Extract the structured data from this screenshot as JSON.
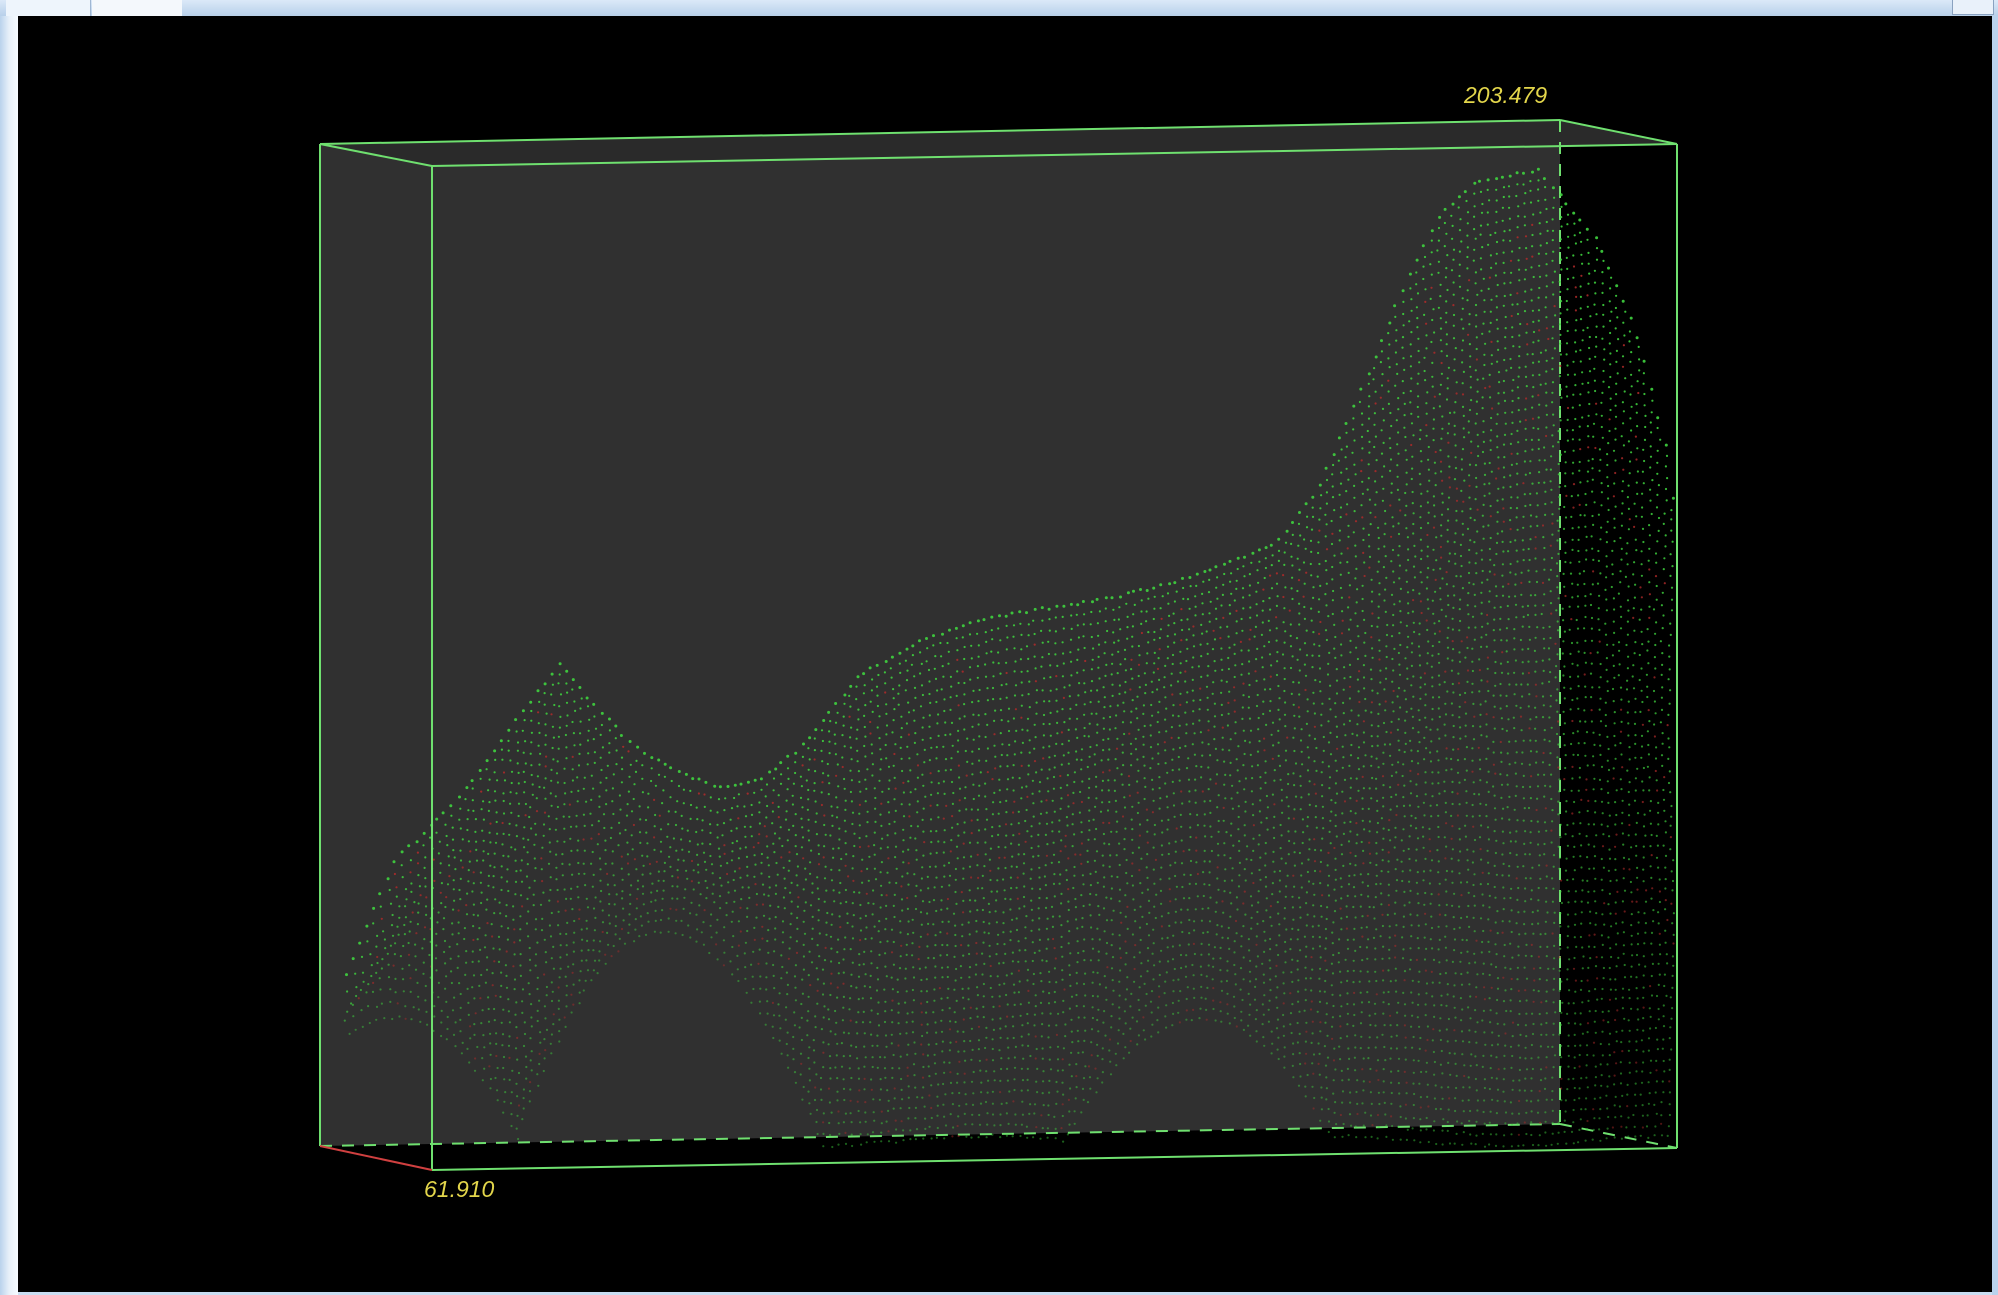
{
  "viewer": {
    "bounds": {
      "max_label": "203.479",
      "min_label": "61.910"
    },
    "colors": {
      "background": "#000000",
      "box_face": "#303030",
      "box_edge": "#6fe06f",
      "points_primary": "#3fd43f",
      "points_secondary": "#b02a2a",
      "axis_x": "#d04040",
      "label": "#e3d64b"
    }
  }
}
